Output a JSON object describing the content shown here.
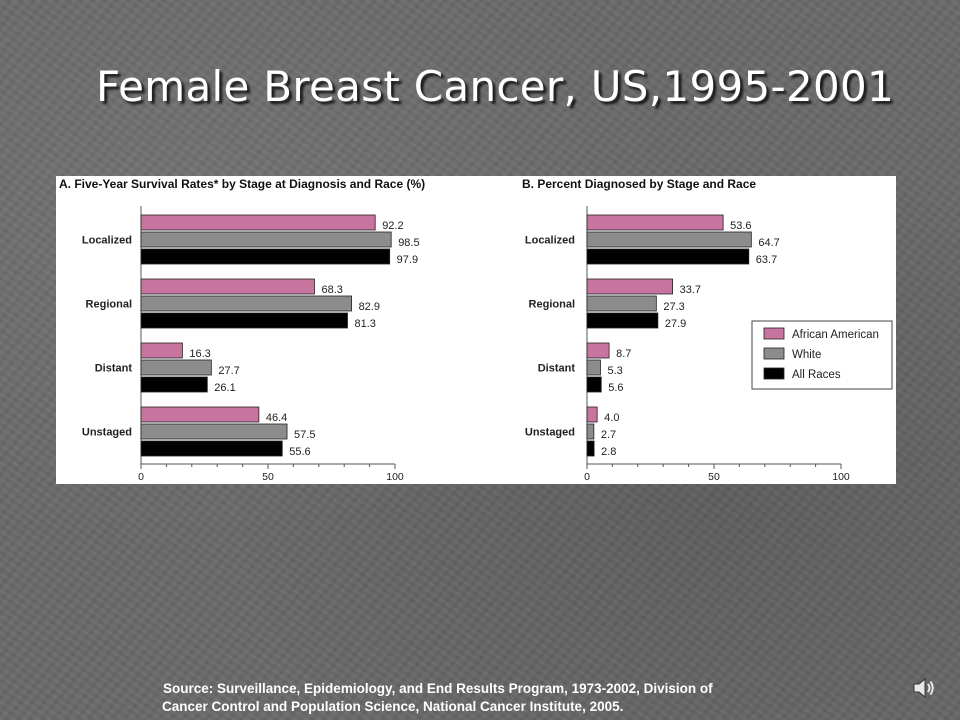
{
  "slide": {
    "title": "Female Breast Cancer, US,1995-2001",
    "source_line1": "Source:  Surveillance, Epidemiology, and End Results Program, 1973-2002, Division of",
    "source_line2": "Cancer Control and Population Science, National Cancer Institute, 2005."
  },
  "colors": {
    "african_american": "#c7749f",
    "white": "#8c8c8c",
    "all_races": "#000000"
  },
  "chart_data": [
    {
      "type": "bar",
      "orientation": "horizontal",
      "title": "A. Five-Year Survival Rates* by Stage at Diagnosis and Race (%)",
      "categories": [
        "Localized",
        "Regional",
        "Distant",
        "Unstaged"
      ],
      "series": [
        {
          "name": "African American",
          "values": [
            92.2,
            68.3,
            16.3,
            46.4
          ]
        },
        {
          "name": "White",
          "values": [
            98.5,
            82.9,
            27.7,
            57.5
          ]
        },
        {
          "name": "All Races",
          "values": [
            97.9,
            81.3,
            26.1,
            55.6
          ]
        }
      ],
      "xlim": [
        0,
        100
      ],
      "xticks": [
        0,
        50,
        100
      ],
      "data_labels": true,
      "grid": false
    },
    {
      "type": "bar",
      "orientation": "horizontal",
      "title": "B. Percent Diagnosed by Stage and Race",
      "categories": [
        "Localized",
        "Regional",
        "Distant",
        "Unstaged"
      ],
      "series": [
        {
          "name": "African American",
          "values": [
            53.6,
            33.7,
            8.7,
            4.0
          ]
        },
        {
          "name": "White",
          "values": [
            64.7,
            27.3,
            5.3,
            2.7
          ]
        },
        {
          "name": "All Races",
          "values": [
            63.7,
            27.9,
            5.6,
            2.8
          ]
        }
      ],
      "xlim": [
        0,
        100
      ],
      "xticks": [
        0,
        50,
        100
      ],
      "data_labels": true,
      "grid": false,
      "legend": {
        "position": "right",
        "entries": [
          "African American",
          "White",
          "All Races"
        ]
      }
    }
  ]
}
